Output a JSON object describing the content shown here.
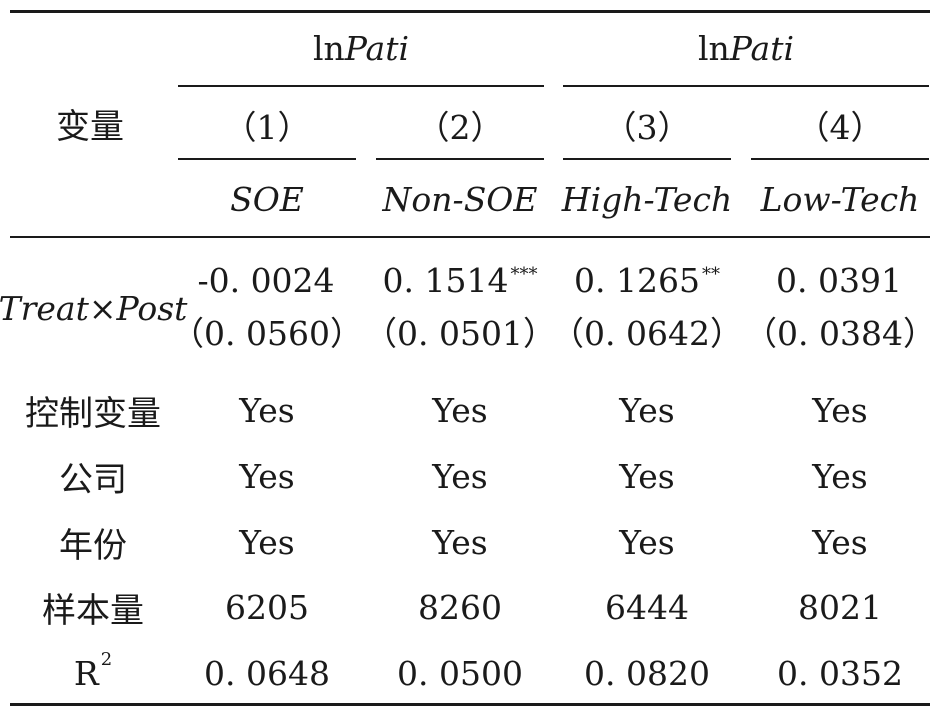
{
  "header": {
    "var_label": "变量",
    "group1_dep": {
      "prefix": "ln",
      "name": "Pati"
    },
    "group2_dep": {
      "prefix": "ln",
      "name": "Pati"
    },
    "col_numbers": [
      "（1）",
      "（2）",
      "（3）",
      "（4）"
    ],
    "col_samples": [
      "SOE",
      "Non-SOE",
      "High-Tech",
      "Low-Tech"
    ]
  },
  "treat_row": {
    "label": "Treat×Post",
    "coefs": [
      {
        "value": "-0. 0024",
        "stars": ""
      },
      {
        "value": "0. 1514",
        "stars": "***"
      },
      {
        "value": "0. 1265",
        "stars": "**"
      },
      {
        "value": "0. 0391",
        "stars": ""
      }
    ],
    "ses": [
      "（0. 0560）",
      "（0. 0501）",
      "（0. 0642）",
      "（0. 0384）"
    ]
  },
  "rows": [
    {
      "label": "控制变量",
      "values": [
        "Yes",
        "Yes",
        "Yes",
        "Yes"
      ]
    },
    {
      "label": "公司",
      "values": [
        "Yes",
        "Yes",
        "Yes",
        "Yes"
      ]
    },
    {
      "label": "年份",
      "values": [
        "Yes",
        "Yes",
        "Yes",
        "Yes"
      ]
    },
    {
      "label": "样本量",
      "values": [
        "6205",
        "8260",
        "6444",
        "8021"
      ]
    }
  ],
  "r2_row": {
    "label_base": "R",
    "label_sup": "2",
    "values": [
      "0. 0648",
      "0. 0500",
      "0. 0820",
      "0. 0352"
    ]
  }
}
